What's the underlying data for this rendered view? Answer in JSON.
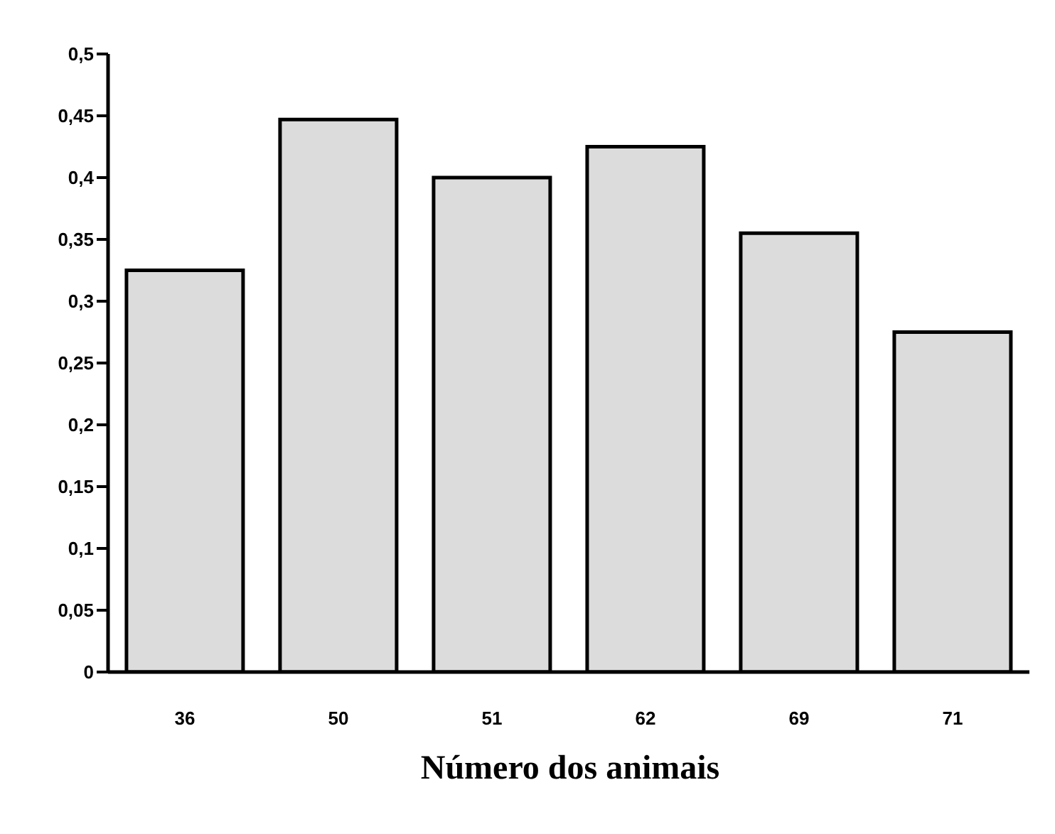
{
  "chart_data": {
    "type": "bar",
    "xlabel": "Número dos animais",
    "categories": [
      "36",
      "50",
      "51",
      "62",
      "69",
      "71"
    ],
    "values": [
      0.325,
      0.447,
      0.4,
      0.425,
      0.355,
      0.275
    ],
    "color": "#dcdcdc",
    "ylim": [
      0,
      0.5
    ],
    "yticks": [
      {
        "value": 0,
        "label": "0"
      },
      {
        "value": 0.05,
        "label": "0,05"
      },
      {
        "value": 0.1,
        "label": "0,1"
      },
      {
        "value": 0.15,
        "label": "0,15"
      },
      {
        "value": 0.2,
        "label": "0,2"
      },
      {
        "value": 0.25,
        "label": "0,25"
      },
      {
        "value": 0.3,
        "label": "0,3"
      },
      {
        "value": 0.35,
        "label": "0,35"
      },
      {
        "value": 0.4,
        "label": "0,4"
      },
      {
        "value": 0.45,
        "label": "0,45"
      },
      {
        "value": 0.5,
        "label": "0,5"
      }
    ],
    "grid": false,
    "legend": false
  }
}
